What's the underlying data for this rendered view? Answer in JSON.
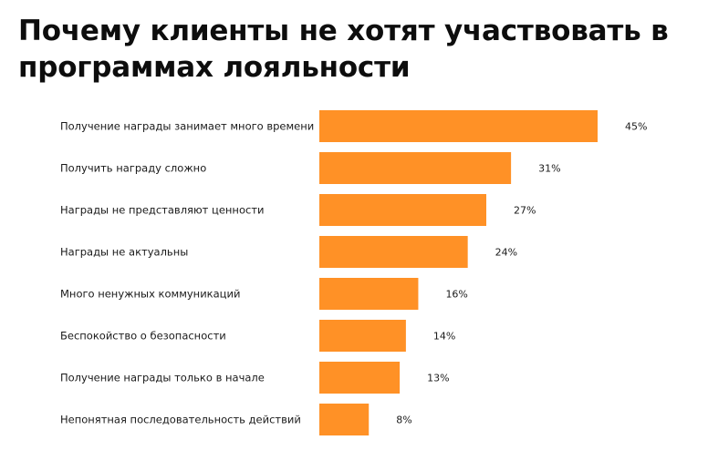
{
  "chart_data": {
    "type": "bar",
    "orientation": "horizontal",
    "title": "Почему клиенты не хотят участвовать в программах лояльности",
    "categories": [
      "Получение награды занимает много времени",
      "Получить награду сложно",
      "Награды не представляют ценности",
      "Награды не актуальны",
      "Много ненужных коммуникаций",
      "Беспокойство о безопасности",
      "Получение награды только в начале",
      "Непонятная последовательность действий"
    ],
    "values": [
      45,
      31,
      27,
      24,
      16,
      14,
      13,
      8
    ],
    "value_labels": [
      "45%",
      "31%",
      "27%",
      "24%",
      "16%",
      "14%",
      "13%",
      "8%"
    ],
    "unit": "%",
    "bar_color": "#FF9126",
    "xlim": [
      0,
      45
    ],
    "grid": false,
    "legend": "none"
  }
}
